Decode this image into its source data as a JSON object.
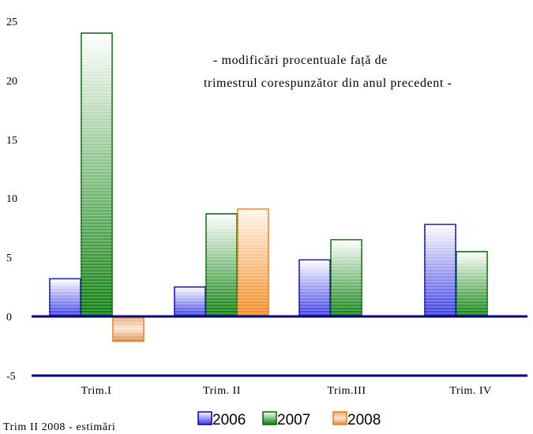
{
  "chart_data": {
    "type": "bar",
    "categories": [
      "Trim.I",
      "Trim. II",
      "Trim.III",
      "Trim. IV"
    ],
    "series": [
      {
        "name": "2006",
        "values": [
          3.2,
          2.5,
          4.8,
          7.8
        ]
      },
      {
        "name": "2007",
        "values": [
          24.0,
          8.7,
          6.5,
          5.5
        ]
      },
      {
        "name": "2008",
        "values": [
          -2.1,
          9.1,
          null,
          null
        ]
      }
    ],
    "annotation": [
      "- modificări procentuale față de",
      "trimestrul corespunzător din anul precedent -"
    ],
    "footnote": "Trim II 2008 - estimări",
    "ylim": [
      -5,
      25
    ],
    "yticks": [
      "25",
      "20",
      "15",
      "10",
      "5",
      "0",
      "-5"
    ],
    "grid": false,
    "legend_position": "bottom",
    "colors": {
      "2006": "#2222dd",
      "2007": "#0a7a0a",
      "2008": "#ee8a22",
      "axis": "#000080"
    }
  }
}
